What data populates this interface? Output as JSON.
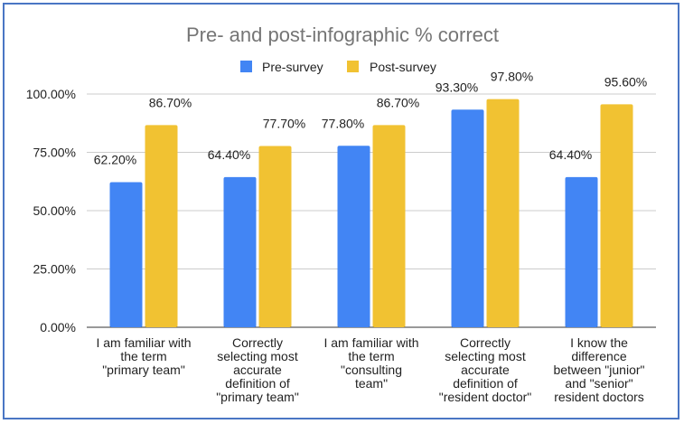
{
  "chart_data": {
    "type": "bar",
    "title": "Pre- and post-infographic % correct",
    "xlabel": "",
    "ylabel": "",
    "ylim": [
      0,
      100
    ],
    "yticks": [
      "0.00%",
      "25.00%",
      "50.00%",
      "75.00%",
      "100.00%"
    ],
    "ytick_values": [
      0,
      25,
      50,
      75,
      100
    ],
    "grid": true,
    "legend_position": "top",
    "categories": [
      [
        "I am familiar with",
        "the term",
        "\"primary team\""
      ],
      [
        "Correctly",
        "selecting most",
        "accurate",
        "definition of",
        "\"primary team\""
      ],
      [
        "I am familiar with",
        "the term",
        "\"consulting",
        "team\""
      ],
      [
        "Correctly",
        "selecting most",
        "accurate",
        "definition of",
        "\"resident doctor\""
      ],
      [
        "I know the",
        "difference",
        "between \"junior\"",
        "and \"senior\"",
        "resident doctors"
      ]
    ],
    "series": [
      {
        "name": "Pre-survey",
        "color": "#4285f4",
        "values": [
          62.2,
          64.4,
          77.8,
          93.3,
          64.4
        ],
        "labels": [
          "62.20%",
          "64.40%",
          "77.80%",
          "93.30%",
          "64.40%"
        ]
      },
      {
        "name": "Post-survey",
        "color": "#f1c232",
        "values": [
          86.7,
          77.7,
          86.7,
          97.8,
          95.6
        ],
        "labels": [
          "86.70%",
          "77.70%",
          "86.70%",
          "97.80%",
          "95.60%"
        ]
      }
    ]
  }
}
